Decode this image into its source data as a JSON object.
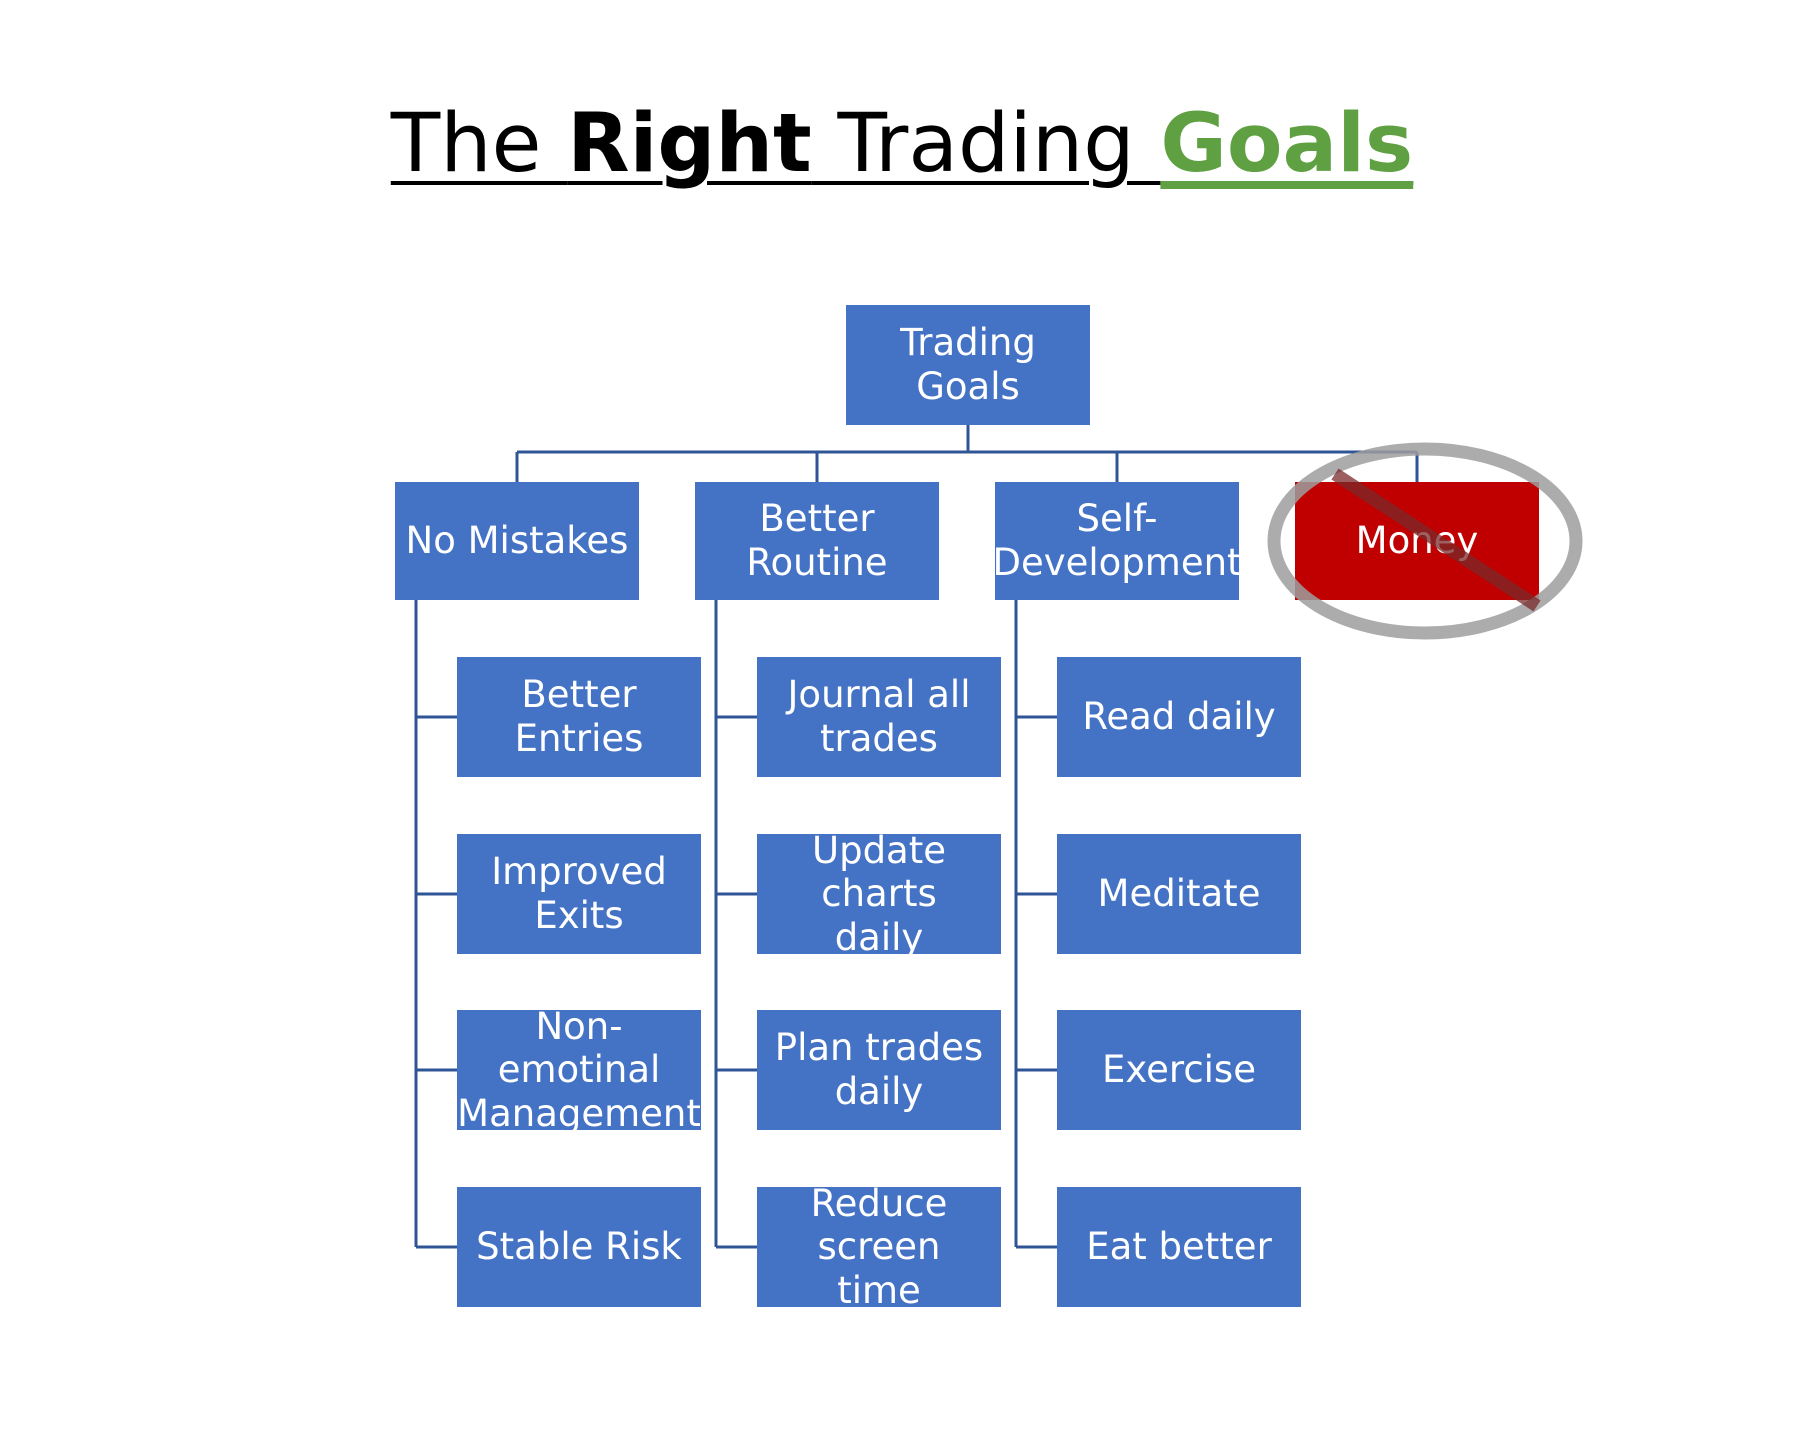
{
  "title": {
    "part1": "The ",
    "part2": "Right",
    "part3": " Trading ",
    "part4": "Goals"
  },
  "colors": {
    "box": "#4472C4",
    "box_crossed": "#C00000",
    "line": "#2F5597",
    "goals_green": "#5FA142",
    "cross_out": "#9E9E9E"
  },
  "root": {
    "label": "Trading Goals"
  },
  "categories": [
    {
      "label": "No Mistakes",
      "crossed_out": false,
      "children": [
        "Better Entries",
        "Improved\nExits",
        "Non-emotinal\nManagement",
        "Stable Risk"
      ]
    },
    {
      "label": "Better Routine",
      "crossed_out": false,
      "children": [
        "Journal all\ntrades",
        "Update charts\ndaily",
        "Plan trades\ndaily",
        "Reduce screen\ntime"
      ]
    },
    {
      "label": "Self-\nDevelopment",
      "crossed_out": false,
      "children": [
        "Read daily",
        "Meditate",
        "Exercise",
        "Eat better"
      ]
    },
    {
      "label": "Money",
      "crossed_out": true,
      "children": []
    }
  ]
}
